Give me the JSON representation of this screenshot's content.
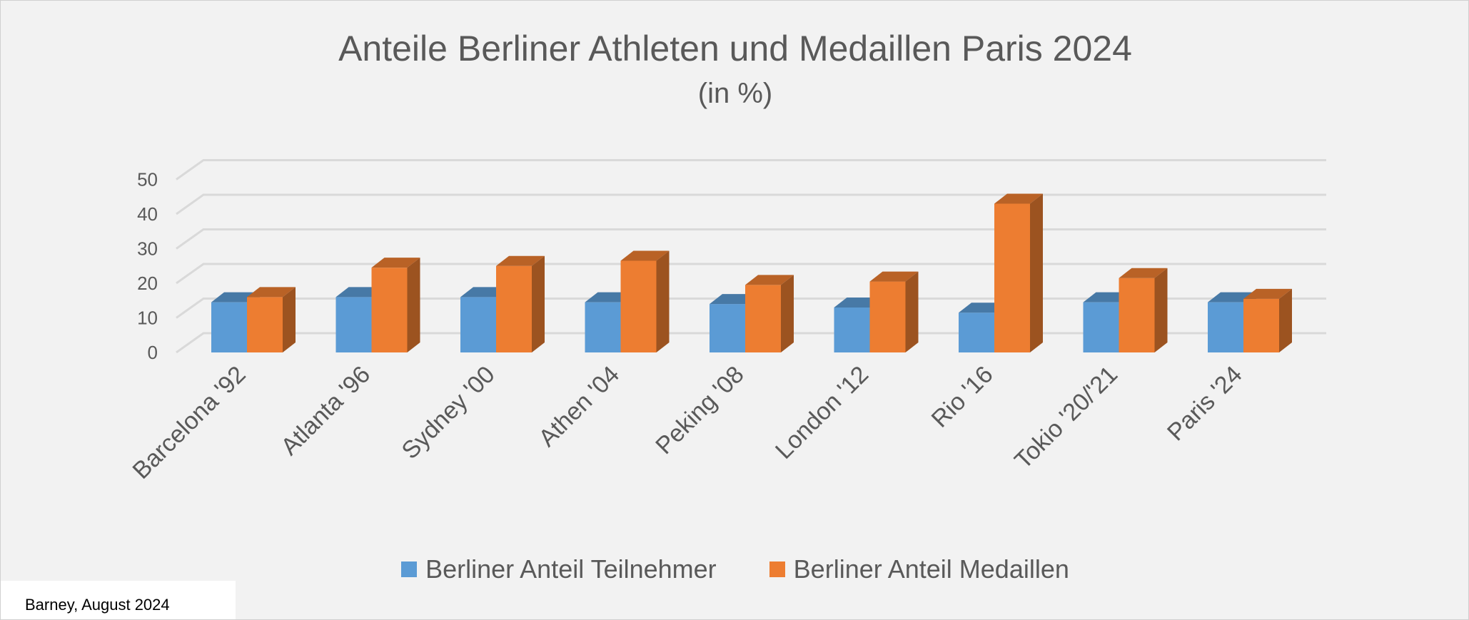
{
  "chart_data": {
    "type": "bar",
    "title": "Anteile Berliner Athleten und Medaillen Paris 2024",
    "subtitle": "(in %)",
    "categories": [
      "Barcelona '92",
      "Atlanta '96",
      "Sydney '00",
      "Athen '04",
      "Peking '08",
      "London '12",
      "Rio '16",
      "Tokio '20/'21",
      "Paris '24"
    ],
    "series": [
      {
        "name": "Berliner Anteil Teilnehmer",
        "color": "#5b9bd5",
        "values": [
          14.5,
          16,
          16,
          14.5,
          14,
          13,
          11.5,
          14.5,
          14.5
        ]
      },
      {
        "name": "Berliner Anteil Medaillen",
        "color": "#ed7d31",
        "values": [
          16,
          24.5,
          25,
          26.5,
          19.5,
          20.5,
          43,
          21.5,
          15.5
        ]
      }
    ],
    "yticks": [
      0,
      10,
      20,
      30,
      40,
      50
    ],
    "ylim": [
      0,
      55
    ],
    "grid": true,
    "legend": "bottom",
    "style": "3d-clustered-column"
  },
  "footer": {
    "credit": "Barney, August 2024"
  }
}
